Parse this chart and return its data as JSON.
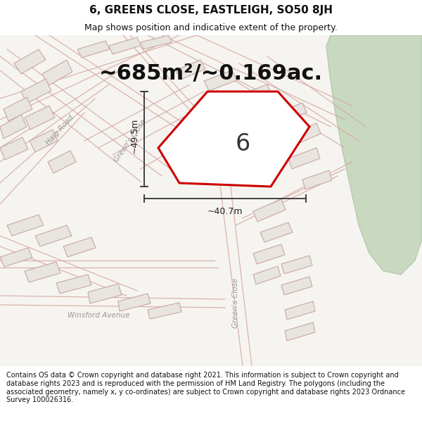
{
  "title": "6, GREENS CLOSE, EASTLEIGH, SO50 8JH",
  "subtitle": "Map shows position and indicative extent of the property.",
  "area_text": "~685m²/~0.169ac.",
  "property_number": "6",
  "dim_width": "~40.7m",
  "dim_height": "~49.5m",
  "footer_text": "Contains OS data © Crown copyright and database right 2021. This information is subject to Crown copyright and database rights 2023 and is reproduced with the permission of HM Land Registry. The polygons (including the associated geometry, namely x, y co-ordinates) are subject to Crown copyright and database rights 2023 Ordnance Survey 100026316.",
  "map_bg": "#f5f3f0",
  "green_area_color": "#c8d9c0",
  "green_edge_color": "#b0c4a8",
  "building_fill": "#e8e4e0",
  "building_edge": "#c8a8a0",
  "road_line_color": "#d4a8a0",
  "property_fill": "#ffffff",
  "property_edge": "#cc0000",
  "title_fontsize": 11,
  "subtitle_fontsize": 9,
  "area_fontsize": 22,
  "property_num_fontsize": 24,
  "dim_fontsize": 9,
  "road_label_fontsize": 7.5,
  "footer_fontsize": 7,
  "title_color": "#111111",
  "footer_color": "#111111",
  "dim_line_color": "#333333"
}
